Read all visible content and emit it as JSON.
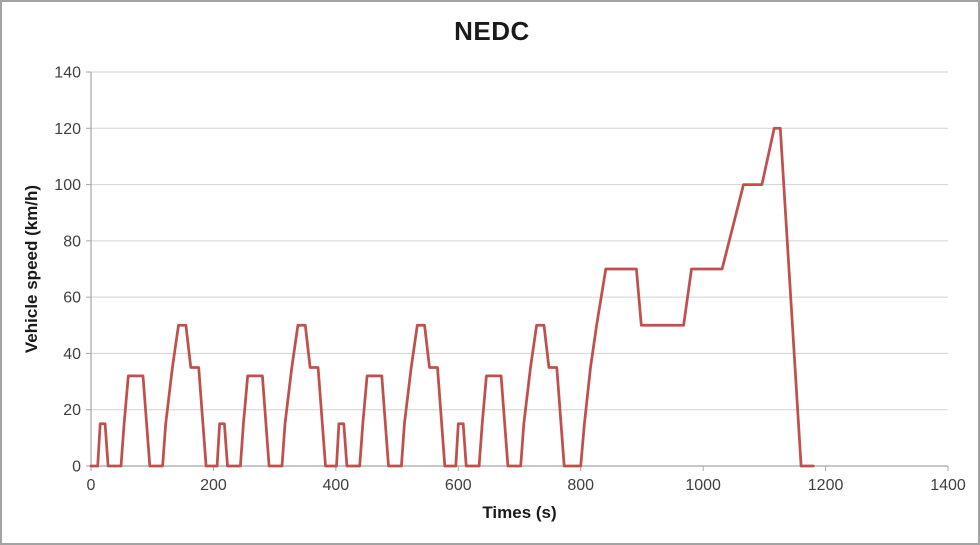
{
  "window": {
    "background": "#FFFFFF",
    "frame_border_color": "#A3A3A3"
  },
  "chart_data": {
    "type": "line",
    "title": "NEDC",
    "xlabel": "Times (s)",
    "ylabel": "Vehicle speed (km/h)",
    "xlim": [
      0,
      1400
    ],
    "ylim": [
      0,
      140
    ],
    "x_ticks": [
      0,
      200,
      400,
      600,
      800,
      1000,
      1200,
      1400
    ],
    "y_ticks": [
      0,
      20,
      40,
      60,
      80,
      100,
      120,
      140
    ],
    "grid": "horizontal",
    "legend": "none",
    "colors": {
      "line": "#C0504D",
      "gridline": "#D3D3D3",
      "axis": "#A6A6A6",
      "tick_label": "#404040",
      "title": "#1A1A1A"
    },
    "series": [
      {
        "name": "Vehicle speed",
        "color": "#C0504D",
        "points": [
          [
            0,
            0
          ],
          [
            11,
            0
          ],
          [
            15,
            15
          ],
          [
            23,
            15
          ],
          [
            28,
            0
          ],
          [
            49,
            0
          ],
          [
            54,
            15
          ],
          [
            61,
            32
          ],
          [
            85,
            32
          ],
          [
            96,
            0
          ],
          [
            117,
            0
          ],
          [
            122,
            15
          ],
          [
            133,
            35
          ],
          [
            143,
            50
          ],
          [
            155,
            50
          ],
          [
            163,
            35
          ],
          [
            176,
            35
          ],
          [
            188,
            0
          ],
          [
            206,
            0
          ],
          [
            210,
            15
          ],
          [
            218,
            15
          ],
          [
            223,
            0
          ],
          [
            244,
            0
          ],
          [
            249,
            15
          ],
          [
            256,
            32
          ],
          [
            280,
            32
          ],
          [
            291,
            0
          ],
          [
            312,
            0
          ],
          [
            317,
            15
          ],
          [
            328,
            35
          ],
          [
            338,
            50
          ],
          [
            350,
            50
          ],
          [
            358,
            35
          ],
          [
            371,
            35
          ],
          [
            383,
            0
          ],
          [
            401,
            0
          ],
          [
            405,
            15
          ],
          [
            413,
            15
          ],
          [
            418,
            0
          ],
          [
            439,
            0
          ],
          [
            444,
            15
          ],
          [
            451,
            32
          ],
          [
            475,
            32
          ],
          [
            486,
            0
          ],
          [
            507,
            0
          ],
          [
            512,
            15
          ],
          [
            523,
            35
          ],
          [
            533,
            50
          ],
          [
            545,
            50
          ],
          [
            553,
            35
          ],
          [
            566,
            35
          ],
          [
            578,
            0
          ],
          [
            596,
            0
          ],
          [
            600,
            15
          ],
          [
            608,
            15
          ],
          [
            613,
            0
          ],
          [
            634,
            0
          ],
          [
            639,
            15
          ],
          [
            646,
            32
          ],
          [
            670,
            32
          ],
          [
            681,
            0
          ],
          [
            702,
            0
          ],
          [
            707,
            15
          ],
          [
            718,
            35
          ],
          [
            728,
            50
          ],
          [
            740,
            50
          ],
          [
            748,
            35
          ],
          [
            761,
            35
          ],
          [
            773,
            0
          ],
          [
            800,
            0
          ],
          [
            806,
            15
          ],
          [
            816,
            35
          ],
          [
            826,
            50
          ],
          [
            841,
            70
          ],
          [
            891,
            70
          ],
          [
            899,
            50
          ],
          [
            968,
            50
          ],
          [
            981,
            70
          ],
          [
            1031,
            70
          ],
          [
            1066,
            100
          ],
          [
            1096,
            100
          ],
          [
            1116,
            120
          ],
          [
            1126,
            120
          ],
          [
            1160,
            0
          ],
          [
            1180,
            0
          ]
        ]
      }
    ]
  }
}
